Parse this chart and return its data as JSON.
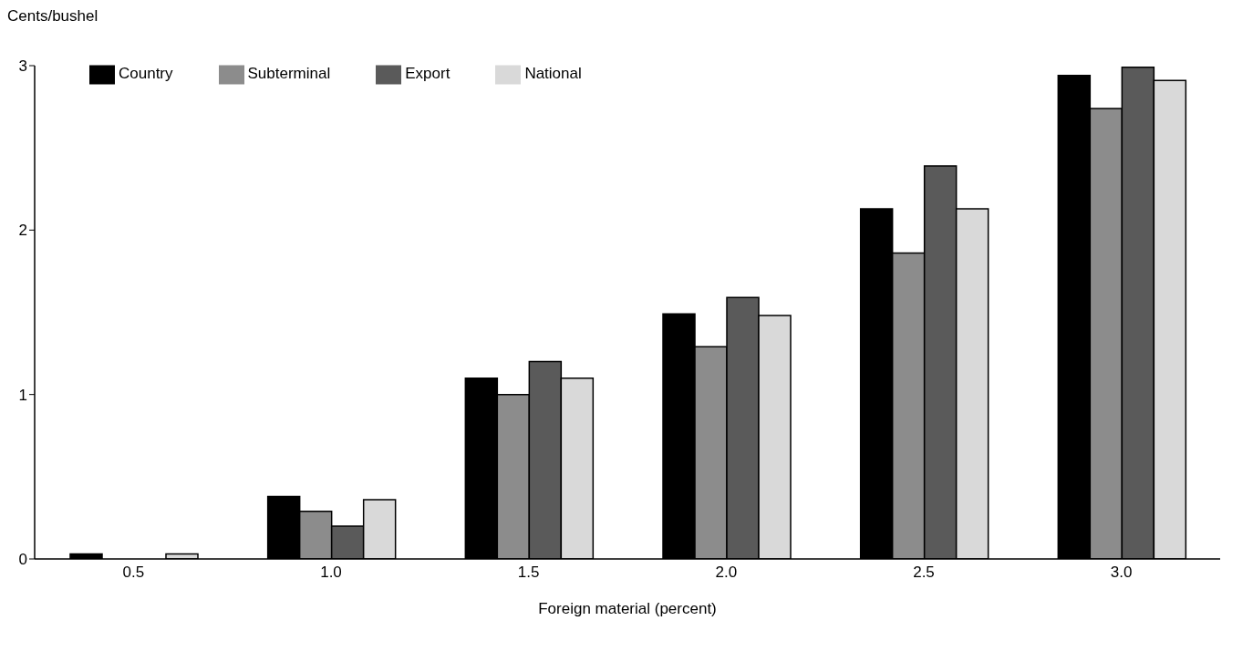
{
  "chart_data": {
    "type": "bar",
    "xlabel": "Foreign material (percent)",
    "ylabel": "Cents/bushel",
    "categories": [
      "0.5",
      "1.0",
      "1.5",
      "2.0",
      "2.5",
      "3.0"
    ],
    "series": [
      {
        "name": "Country",
        "color": "#000000",
        "values": [
          0.03,
          0.38,
          1.1,
          1.49,
          2.13,
          2.94
        ]
      },
      {
        "name": "Subterminal",
        "color": "#8c8c8c",
        "values": [
          0,
          0.29,
          1.0,
          1.29,
          1.86,
          2.74
        ]
      },
      {
        "name": "Export",
        "color": "#5a5a5a",
        "values": [
          0,
          0.2,
          1.2,
          1.59,
          2.39,
          2.99
        ]
      },
      {
        "name": "National",
        "color": "#d9d9d9",
        "values": [
          0.03,
          0.36,
          1.1,
          1.48,
          2.13,
          2.91
        ]
      }
    ],
    "ylim": [
      0,
      3
    ],
    "yticks": [
      0,
      1,
      2,
      3
    ],
    "grid": false,
    "legend": "top left"
  }
}
